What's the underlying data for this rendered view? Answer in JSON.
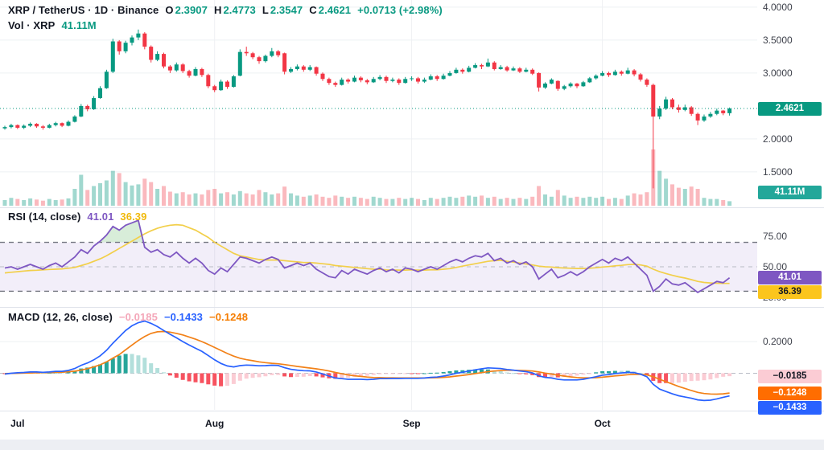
{
  "header": {
    "title": "XRP / TetherUS · 1D · Binance",
    "ohlc": {
      "o_label": "O",
      "o": "2.3907",
      "h_label": "H",
      "h": "2.4773",
      "l_label": "L",
      "l": "2.3547",
      "c_label": "C",
      "c": "2.4621",
      "change": "+0.0713 (+2.98%)"
    },
    "volume_row": {
      "label": "Vol · XRP",
      "value": "41.11M"
    }
  },
  "panes": {
    "rsi": {
      "label": "RSI (14, close)",
      "value": "41.01",
      "ma_value": "36.39"
    },
    "macd": {
      "label": "MACD (12, 26, close)",
      "hist_value": "−0.0185",
      "macd_value": "−0.1433",
      "signal_value": "−0.1248"
    }
  },
  "axis": {
    "price_ticks": [
      {
        "text": "4.0000",
        "value": 4.0
      },
      {
        "text": "3.5000",
        "value": 3.5
      },
      {
        "text": "3.0000",
        "value": 3.0
      },
      {
        "text": "2.0000",
        "value": 2.0
      },
      {
        "text": "1.5000",
        "value": 1.5
      }
    ],
    "price_badge": "2.4621",
    "volume_badge": "41.11M",
    "rsi_ticks": [
      {
        "text": "75.00",
        "value": 75
      },
      {
        "text": "50.00",
        "value": 50
      },
      {
        "text": "25.00",
        "value": 25
      }
    ],
    "rsi_badges": [
      {
        "text": "41.01",
        "bg": "#7e57c2",
        "fg": "#ffffff"
      },
      {
        "text": "36.39",
        "bg": "#fbc51d",
        "fg": "#131722"
      }
    ],
    "macd_ticks": [
      {
        "text": "0.2000",
        "value": 0.2
      }
    ],
    "macd_badges": [
      {
        "text": "−0.0185",
        "bg": "#fbccd4",
        "fg": "#131722"
      },
      {
        "text": "−0.1248",
        "bg": "#ff6d00",
        "fg": "#ffffff"
      },
      {
        "text": "−0.1433",
        "bg": "#2962ff",
        "fg": "#ffffff"
      }
    ],
    "time_labels": [
      "Jul",
      "Aug",
      "Sep",
      "Oct"
    ]
  },
  "colors": {
    "up": "#089981",
    "down": "#f23645",
    "vol_up": "rgba(8,153,129,0.38)",
    "vol_down": "rgba(242,54,69,0.35)",
    "grid": "#eef0f3",
    "last_price_line": "#089981",
    "rsi_line": "#7e57c2",
    "rsi_ma_line": "#f2cf4a",
    "rsi_band_fill": "rgba(126,87,194,0.10)",
    "rsi_over_fill": "rgba(76,175,80,0.22)",
    "band_dash": "#70737e",
    "mid_dash": "#b8bcc5",
    "macd_line": "#2962ff",
    "signal_line": "#f28118",
    "hist_up": "#26a69a",
    "hist_up_fade": "#b2dfdb",
    "hist_down": "#f7525f",
    "hist_down_fade": "#fbccd4",
    "separator": "#e0e3eb"
  },
  "chart_data": {
    "type": "candlestick+volume+rsi+macd",
    "symbol": "XRP / TetherUS",
    "interval": "1D",
    "exchange": "Binance",
    "last": {
      "open": 2.3907,
      "high": 2.4773,
      "low": 2.3547,
      "close": 2.4621,
      "change": "+0.0713 (+2.98%)",
      "volume": "41.11M"
    },
    "price_axis_ticks": [
      4.0,
      3.5,
      3.0,
      2.0,
      1.5
    ],
    "rsi_bands": [
      70,
      50,
      30
    ],
    "rsi_axis_ticks": [
      75,
      50,
      25
    ],
    "macd_axis_ticks": [
      0.2
    ],
    "rsi_last": 41.01,
    "rsi_ma_last": 36.39,
    "macd_last": -0.1433,
    "signal_last": -0.1248,
    "hist_last": -0.0185,
    "month_labels": [
      "Jul",
      "Aug",
      "Sep",
      "Oct"
    ],
    "month_indices": [
      2,
      33,
      64,
      94
    ],
    "columns": [
      "open",
      "high",
      "low",
      "close",
      "rel_volume",
      "rsi",
      "rsi_ma",
      "macd",
      "signal"
    ],
    "candles": [
      [
        2.16,
        2.2,
        2.14,
        2.18,
        0.1,
        49,
        45.0,
        -0.005,
        -0.002
      ],
      [
        2.18,
        2.23,
        2.16,
        2.21,
        0.14,
        50,
        45.5,
        0.0,
        -0.001
      ],
      [
        2.21,
        2.22,
        2.15,
        2.17,
        0.12,
        48,
        46.0,
        0.003,
        0.0
      ],
      [
        2.17,
        2.22,
        2.15,
        2.2,
        0.1,
        50,
        46.5,
        0.005,
        0.001
      ],
      [
        2.2,
        2.25,
        2.18,
        2.23,
        0.13,
        52,
        47.0,
        0.008,
        0.002
      ],
      [
        2.23,
        2.24,
        2.17,
        2.19,
        0.11,
        50,
        47.2,
        0.008,
        0.003
      ],
      [
        2.19,
        2.21,
        2.14,
        2.17,
        0.09,
        48,
        47.5,
        0.006,
        0.004
      ],
      [
        2.17,
        2.23,
        2.16,
        2.21,
        0.12,
        51,
        47.8,
        0.008,
        0.005
      ],
      [
        2.21,
        2.26,
        2.19,
        2.24,
        0.1,
        53,
        48.0,
        0.012,
        0.006
      ],
      [
        2.24,
        2.25,
        2.18,
        2.2,
        0.11,
        50,
        48.3,
        0.012,
        0.007
      ],
      [
        2.2,
        2.28,
        2.19,
        2.26,
        0.13,
        54,
        48.8,
        0.018,
        0.009
      ],
      [
        2.26,
        2.36,
        2.25,
        2.34,
        0.3,
        58,
        49.5,
        0.03,
        0.013
      ],
      [
        2.34,
        2.53,
        2.33,
        2.5,
        0.55,
        64,
        51.0,
        0.05,
        0.02
      ],
      [
        2.5,
        2.52,
        2.42,
        2.45,
        0.28,
        61,
        52.5,
        0.065,
        0.029
      ],
      [
        2.45,
        2.65,
        2.44,
        2.62,
        0.35,
        67,
        54.5,
        0.085,
        0.04
      ],
      [
        2.62,
        2.8,
        2.61,
        2.77,
        0.4,
        71,
        56.5,
        0.11,
        0.054
      ],
      [
        2.77,
        3.05,
        2.76,
        3.02,
        0.45,
        76,
        59.0,
        0.145,
        0.072
      ],
      [
        3.02,
        3.52,
        3.0,
        3.48,
        0.62,
        83,
        62.0,
        0.19,
        0.096
      ],
      [
        3.48,
        3.5,
        3.28,
        3.33,
        0.58,
        80,
        65.0,
        0.23,
        0.118
      ],
      [
        3.33,
        3.49,
        3.3,
        3.46,
        0.42,
        84,
        68.0,
        0.27,
        0.148
      ],
      [
        3.46,
        3.57,
        3.42,
        3.54,
        0.36,
        86,
        71.0,
        0.3,
        0.178
      ],
      [
        3.54,
        3.66,
        3.5,
        3.6,
        0.38,
        88,
        74.0,
        0.32,
        0.207
      ],
      [
        3.6,
        3.62,
        3.36,
        3.4,
        0.48,
        66,
        77.0,
        0.33,
        0.232
      ],
      [
        3.4,
        3.42,
        3.16,
        3.2,
        0.42,
        62,
        79.5,
        0.315,
        0.252
      ],
      [
        3.2,
        3.33,
        3.18,
        3.29,
        0.3,
        64,
        81.5,
        0.295,
        0.262
      ],
      [
        3.29,
        3.31,
        3.07,
        3.1,
        0.35,
        60,
        83.0,
        0.27,
        0.264
      ],
      [
        3.1,
        3.12,
        3.0,
        3.04,
        0.25,
        58,
        84.0,
        0.246,
        0.26
      ],
      [
        3.04,
        3.16,
        3.02,
        3.13,
        0.22,
        62,
        84.5,
        0.224,
        0.252
      ],
      [
        3.13,
        3.15,
        3.0,
        3.03,
        0.24,
        57,
        84.0,
        0.2,
        0.242
      ],
      [
        3.03,
        3.05,
        2.93,
        2.96,
        0.2,
        53,
        82.0,
        0.178,
        0.229
      ],
      [
        2.96,
        3.09,
        2.95,
        3.06,
        0.22,
        57,
        80.0,
        0.158,
        0.215
      ],
      [
        3.06,
        3.08,
        2.94,
        2.97,
        0.2,
        53,
        77.0,
        0.138,
        0.2
      ],
      [
        2.97,
        2.99,
        2.77,
        2.8,
        0.28,
        47,
        74.0,
        0.112,
        0.182
      ],
      [
        2.8,
        2.82,
        2.71,
        2.74,
        0.3,
        44,
        70.0,
        0.085,
        0.163
      ],
      [
        2.74,
        2.9,
        2.73,
        2.87,
        0.22,
        49,
        67.0,
        0.062,
        0.144
      ],
      [
        2.87,
        2.89,
        2.76,
        2.79,
        0.24,
        46,
        64.0,
        0.046,
        0.125
      ],
      [
        2.79,
        2.97,
        2.78,
        2.95,
        0.2,
        52,
        61.0,
        0.04,
        0.108
      ],
      [
        2.96,
        3.36,
        2.95,
        3.32,
        0.26,
        58,
        59.0,
        0.048,
        0.095
      ],
      [
        3.32,
        3.4,
        3.26,
        3.3,
        0.22,
        57,
        58.0,
        0.052,
        0.086
      ],
      [
        3.3,
        3.32,
        3.21,
        3.24,
        0.2,
        55,
        57.0,
        0.05,
        0.079
      ],
      [
        3.24,
        3.26,
        3.14,
        3.18,
        0.28,
        53,
        56.0,
        0.047,
        0.072
      ],
      [
        3.18,
        3.28,
        3.16,
        3.26,
        0.24,
        56,
        55.5,
        0.048,
        0.067
      ],
      [
        3.26,
        3.38,
        3.24,
        3.33,
        0.2,
        58,
        55.5,
        0.051,
        0.063
      ],
      [
        3.33,
        3.35,
        3.24,
        3.27,
        0.22,
        56,
        55.5,
        0.049,
        0.06
      ],
      [
        3.3,
        3.31,
        2.98,
        3.02,
        0.34,
        49,
        55.0,
        0.035,
        0.055
      ],
      [
        3.02,
        3.09,
        3.0,
        3.06,
        0.22,
        51,
        54.5,
        0.025,
        0.049
      ],
      [
        3.06,
        3.13,
        3.04,
        3.1,
        0.18,
        53,
        54.0,
        0.02,
        0.043
      ],
      [
        3.1,
        3.12,
        3.02,
        3.05,
        0.16,
        51,
        53.5,
        0.016,
        0.038
      ],
      [
        3.05,
        3.12,
        3.03,
        3.09,
        0.18,
        53,
        53.5,
        0.015,
        0.033
      ],
      [
        3.09,
        3.1,
        2.96,
        2.99,
        0.2,
        48,
        53.0,
        0.008,
        0.028
      ],
      [
        2.99,
        3.01,
        2.88,
        2.91,
        0.16,
        45,
        52.5,
        -0.004,
        0.022
      ],
      [
        2.91,
        2.93,
        2.82,
        2.85,
        0.14,
        42,
        52.0,
        -0.018,
        0.014
      ],
      [
        2.85,
        2.87,
        2.79,
        2.82,
        0.18,
        41,
        51.0,
        -0.03,
        0.005
      ],
      [
        2.82,
        2.93,
        2.81,
        2.9,
        0.16,
        47,
        50.5,
        -0.034,
        -0.003
      ],
      [
        2.9,
        2.92,
        2.84,
        2.87,
        0.14,
        44,
        50.0,
        -0.038,
        -0.01
      ],
      [
        2.87,
        2.96,
        2.86,
        2.93,
        0.16,
        48,
        49.5,
        -0.038,
        -0.016
      ],
      [
        2.93,
        2.95,
        2.86,
        2.89,
        0.14,
        46,
        49.0,
        -0.038,
        -0.02
      ],
      [
        2.89,
        2.91,
        2.83,
        2.86,
        0.12,
        44,
        48.5,
        -0.04,
        -0.024
      ],
      [
        2.86,
        2.94,
        2.85,
        2.91,
        0.16,
        47,
        48.0,
        -0.038,
        -0.027
      ],
      [
        2.91,
        2.97,
        2.89,
        2.94,
        0.14,
        49,
        48.0,
        -0.034,
        -0.028
      ],
      [
        2.94,
        2.96,
        2.85,
        2.88,
        0.12,
        46,
        47.5,
        -0.034,
        -0.029
      ],
      [
        2.88,
        2.93,
        2.86,
        2.9,
        0.12,
        48,
        47.4,
        -0.033,
        -0.029
      ],
      [
        2.9,
        2.92,
        2.82,
        2.85,
        0.14,
        45,
        47.3,
        -0.033,
        -0.03
      ],
      [
        2.85,
        2.94,
        2.84,
        2.91,
        0.12,
        49,
        47.3,
        -0.032,
        -0.03
      ],
      [
        2.91,
        2.95,
        2.88,
        2.92,
        0.14,
        48,
        47.5,
        -0.032,
        -0.03
      ],
      [
        2.92,
        2.94,
        2.84,
        2.87,
        0.12,
        46,
        47.3,
        -0.032,
        -0.03
      ],
      [
        2.87,
        2.93,
        2.85,
        2.9,
        0.1,
        48,
        47.3,
        -0.03,
        -0.03
      ],
      [
        2.9,
        2.98,
        2.89,
        2.95,
        0.14,
        50,
        47.5,
        -0.026,
        -0.029
      ],
      [
        2.95,
        2.97,
        2.88,
        2.91,
        0.12,
        48,
        47.5,
        -0.024,
        -0.028
      ],
      [
        2.91,
        2.99,
        2.9,
        2.96,
        0.14,
        51,
        48.0,
        -0.018,
        -0.026
      ],
      [
        2.96,
        3.03,
        2.95,
        3.0,
        0.16,
        54,
        48.5,
        -0.01,
        -0.023
      ],
      [
        3.0,
        3.08,
        2.99,
        3.05,
        0.14,
        56,
        49.5,
        0.0,
        -0.018
      ],
      [
        3.05,
        3.07,
        2.99,
        3.02,
        0.16,
        54,
        50.5,
        0.006,
        -0.013
      ],
      [
        3.02,
        3.11,
        3.01,
        3.08,
        0.18,
        57,
        51.5,
        0.014,
        -0.008
      ],
      [
        3.08,
        3.15,
        3.07,
        3.12,
        0.16,
        59,
        52.5,
        0.022,
        -0.002
      ],
      [
        3.12,
        3.14,
        3.06,
        3.1,
        0.18,
        58,
        53.5,
        0.028,
        0.004
      ],
      [
        3.1,
        3.22,
        3.09,
        3.16,
        0.14,
        61,
        54.5,
        0.034,
        0.01
      ],
      [
        3.16,
        3.18,
        3.04,
        3.06,
        0.16,
        55,
        55.0,
        0.032,
        0.014
      ],
      [
        3.06,
        3.12,
        3.05,
        3.09,
        0.12,
        57,
        55.3,
        0.03,
        0.017
      ],
      [
        3.09,
        3.11,
        3.02,
        3.04,
        0.14,
        53,
        54.5,
        0.024,
        0.019
      ],
      [
        3.04,
        3.1,
        3.03,
        3.07,
        0.12,
        55,
        53.8,
        0.02,
        0.019
      ],
      [
        3.07,
        3.09,
        3.0,
        3.02,
        0.14,
        52,
        53.0,
        0.014,
        0.018
      ],
      [
        3.02,
        3.08,
        3.01,
        3.05,
        0.12,
        54,
        52.3,
        0.01,
        0.017
      ],
      [
        3.05,
        3.07,
        2.97,
        2.99,
        0.16,
        50,
        51.5,
        0.002,
        0.014
      ],
      [
        3.0,
        3.01,
        2.72,
        2.78,
        0.35,
        40,
        50.5,
        -0.016,
        0.008
      ],
      [
        2.78,
        2.86,
        2.76,
        2.84,
        0.2,
        44,
        50.0,
        -0.026,
        0.001
      ],
      [
        2.84,
        2.92,
        2.83,
        2.9,
        0.16,
        48,
        49.8,
        -0.03,
        -0.005
      ],
      [
        2.88,
        2.89,
        2.73,
        2.76,
        0.28,
        41,
        49.3,
        -0.038,
        -0.012
      ],
      [
        2.76,
        2.82,
        2.74,
        2.8,
        0.18,
        43,
        49.0,
        -0.042,
        -0.018
      ],
      [
        2.8,
        2.86,
        2.78,
        2.84,
        0.14,
        46,
        48.8,
        -0.042,
        -0.023
      ],
      [
        2.84,
        2.85,
        2.77,
        2.8,
        0.16,
        43,
        48.6,
        -0.042,
        -0.027
      ],
      [
        2.8,
        2.88,
        2.79,
        2.86,
        0.14,
        46,
        48.6,
        -0.038,
        -0.029
      ],
      [
        2.86,
        2.94,
        2.85,
        2.92,
        0.16,
        50,
        48.8,
        -0.03,
        -0.029
      ],
      [
        2.92,
        2.98,
        2.9,
        2.96,
        0.14,
        53,
        49.2,
        -0.022,
        -0.028
      ],
      [
        2.96,
        3.03,
        2.95,
        3.0,
        0.16,
        56,
        49.8,
        -0.012,
        -0.025
      ],
      [
        3.0,
        3.02,
        2.94,
        2.97,
        0.12,
        53,
        50.2,
        -0.008,
        -0.021
      ],
      [
        2.97,
        3.05,
        2.96,
        3.02,
        0.14,
        57,
        50.8,
        -0.002,
        -0.017
      ],
      [
        3.02,
        3.04,
        2.96,
        2.99,
        0.12,
        55,
        51.2,
        0.002,
        -0.013
      ],
      [
        2.99,
        3.08,
        2.98,
        3.04,
        0.18,
        58,
        51.8,
        0.006,
        -0.009
      ],
      [
        3.04,
        3.06,
        2.95,
        2.98,
        0.22,
        53,
        52.0,
        0.004,
        -0.007
      ],
      [
        2.98,
        3.0,
        2.87,
        2.9,
        0.2,
        48,
        51.5,
        -0.006,
        -0.007
      ],
      [
        2.9,
        2.92,
        2.79,
        2.82,
        0.24,
        43,
        50.5,
        -0.022,
        -0.01
      ],
      [
        2.82,
        2.84,
        1.25,
        2.34,
        1.0,
        30,
        48.0,
        -0.07,
        -0.022
      ],
      [
        2.34,
        2.5,
        2.3,
        2.46,
        0.62,
        34,
        46.0,
        -0.1,
        -0.038
      ],
      [
        2.46,
        2.64,
        2.44,
        2.6,
        0.48,
        40,
        44.5,
        -0.115,
        -0.053
      ],
      [
        2.6,
        2.62,
        2.45,
        2.48,
        0.38,
        36,
        43.0,
        -0.13,
        -0.068
      ],
      [
        2.48,
        2.52,
        2.4,
        2.44,
        0.32,
        35,
        41.8,
        -0.142,
        -0.083
      ],
      [
        2.44,
        2.52,
        2.42,
        2.48,
        0.3,
        37,
        40.8,
        -0.15,
        -0.096
      ],
      [
        2.48,
        2.5,
        2.35,
        2.38,
        0.34,
        33,
        39.5,
        -0.158,
        -0.109
      ],
      [
        2.38,
        2.4,
        2.21,
        2.28,
        0.3,
        29,
        38.0,
        -0.168,
        -0.121
      ],
      [
        2.28,
        2.37,
        2.26,
        2.34,
        0.14,
        32,
        37.2,
        -0.172,
        -0.128
      ],
      [
        2.34,
        2.41,
        2.32,
        2.38,
        0.12,
        35,
        36.8,
        -0.17,
        -0.131
      ],
      [
        2.38,
        2.46,
        2.36,
        2.43,
        0.12,
        38,
        36.5,
        -0.162,
        -0.132
      ],
      [
        2.43,
        2.44,
        2.36,
        2.39,
        0.1,
        37,
        36.4,
        -0.152,
        -0.13
      ],
      [
        2.3907,
        2.4773,
        2.3547,
        2.4621,
        0.08,
        41.01,
        36.39,
        -0.1433,
        -0.1248
      ]
    ]
  }
}
